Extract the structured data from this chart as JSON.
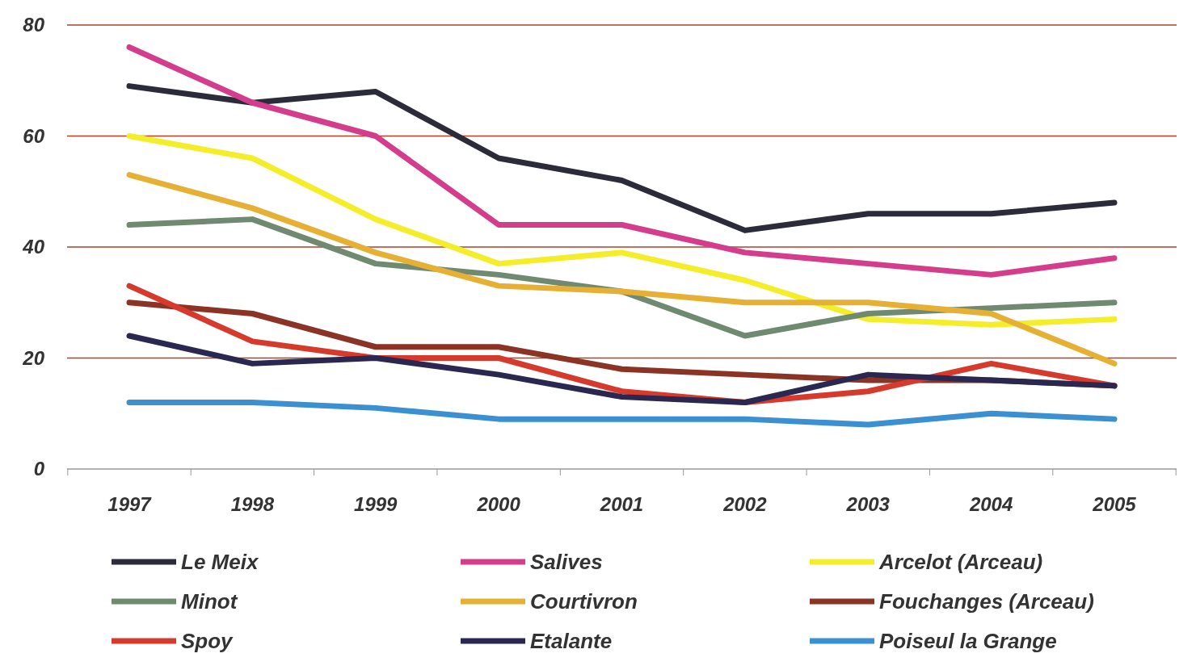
{
  "chart_data": {
    "type": "line",
    "categories": [
      "1997",
      "1998",
      "1999",
      "2000",
      "2001",
      "2002",
      "2003",
      "2004",
      "2005"
    ],
    "ylim": [
      0,
      80
    ],
    "yticks": [
      0,
      20,
      40,
      60,
      80
    ],
    "grid": "y",
    "legend": "bottom",
    "marker": "none",
    "line_style": "solid",
    "series": [
      {
        "name": "Le Meix",
        "color": "#2b2b3a",
        "values": [
          69,
          66,
          68,
          56,
          52,
          43,
          46,
          46,
          48
        ]
      },
      {
        "name": "Salives",
        "color": "#d43c8c",
        "values": [
          76,
          66,
          60,
          44,
          44,
          39,
          37,
          35,
          38
        ]
      },
      {
        "name": "Arcelot (Arceau)",
        "color": "#f4ee2a",
        "values": [
          60,
          56,
          45,
          37,
          39,
          34,
          27,
          26,
          27
        ]
      },
      {
        "name": "Minot",
        "color": "#6f8a70",
        "values": [
          44,
          45,
          37,
          35,
          32,
          24,
          28,
          29,
          30
        ]
      },
      {
        "name": "Courtivron",
        "color": "#e6b034",
        "values": [
          53,
          47,
          39,
          33,
          32,
          30,
          30,
          28,
          19
        ]
      },
      {
        "name": "Fouchanges (Arceau)",
        "color": "#8b3324",
        "values": [
          30,
          28,
          22,
          22,
          18,
          17,
          16,
          16,
          15
        ]
      },
      {
        "name": "Spoy",
        "color": "#d63a2c",
        "values": [
          33,
          23,
          20,
          20,
          14,
          12,
          14,
          19,
          15
        ]
      },
      {
        "name": "Etalante",
        "color": "#2a2850",
        "values": [
          24,
          19,
          20,
          17,
          13,
          12,
          17,
          16,
          15
        ]
      },
      {
        "name": "Poiseul la Grange",
        "color": "#3a90d0",
        "values": [
          12,
          12,
          11,
          9,
          9,
          9,
          8,
          10,
          9
        ]
      }
    ]
  }
}
